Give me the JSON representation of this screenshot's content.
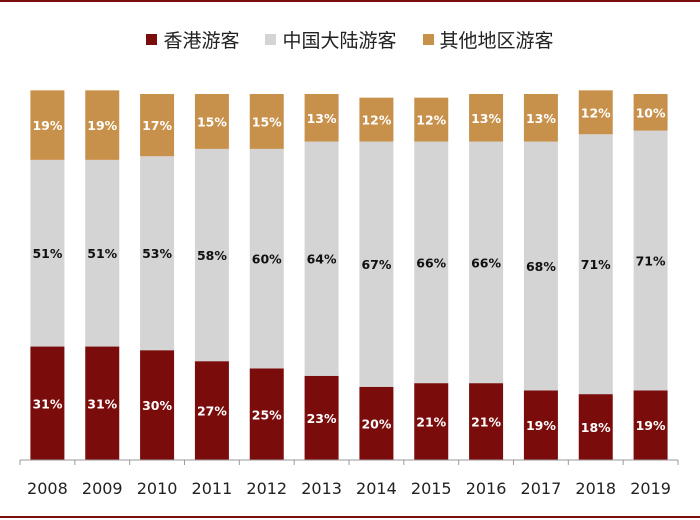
{
  "chart_data": {
    "type": "bar",
    "stacked": true,
    "percent": true,
    "categories": [
      "2008",
      "2009",
      "2010",
      "2011",
      "2012",
      "2013",
      "2014",
      "2015",
      "2016",
      "2017",
      "2018",
      "2019"
    ],
    "series": [
      {
        "name": "香港游客",
        "color": "#7b0c0c",
        "label_color": "#ffffff",
        "values": [
          31,
          31,
          30,
          27,
          25,
          23,
          20,
          21,
          21,
          19,
          18,
          19
        ]
      },
      {
        "name": "中国大陆游客",
        "color": "#d4d4d4",
        "label_color": "#111111",
        "values": [
          51,
          51,
          53,
          58,
          60,
          64,
          67,
          66,
          66,
          68,
          71,
          71
        ]
      },
      {
        "name": "其他地区游客",
        "color": "#c8914b",
        "label_color": "#ffffff",
        "values": [
          19,
          19,
          17,
          15,
          15,
          13,
          12,
          12,
          13,
          13,
          12,
          10
        ]
      }
    ],
    "value_suffix": "%",
    "legend_position": "top",
    "grid": false
  }
}
